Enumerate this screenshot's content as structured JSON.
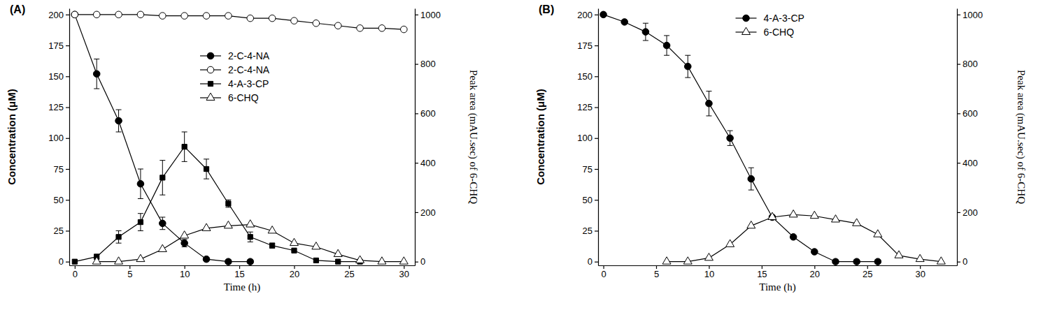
{
  "chart_data": [
    {
      "type": "line",
      "title": "(A)",
      "x_label": "Time (h)",
      "y_label": "Concentration (μM)",
      "y2_label": "Peak area (mAU.sec) of 6-CHQ",
      "xlim": [
        -0.5,
        31
      ],
      "xticks": [
        0,
        5,
        10,
        15,
        20,
        25,
        30
      ],
      "ylim": [
        -3,
        205
      ],
      "yticks": [
        0,
        25,
        50,
        75,
        100,
        125,
        150,
        175,
        200
      ],
      "y2lim": [
        -15,
        1025
      ],
      "y2ticks": [
        0,
        200,
        400,
        600,
        800,
        1000
      ],
      "legend": "upper center",
      "series": [
        {
          "name": "2-C-4-NA",
          "color": "#000000",
          "marker": "filled-circle",
          "line_style": "solid",
          "x": [
            0,
            2,
            4,
            6,
            8,
            10,
            12,
            14,
            16
          ],
          "values": [
            200,
            152,
            114,
            63,
            31,
            15,
            2,
            0,
            0
          ],
          "errors": [
            null,
            12,
            9,
            12,
            5,
            3,
            null,
            null,
            null
          ]
        },
        {
          "name": "2-C-4-NA",
          "color": "#000000",
          "marker": "open-circle",
          "line_style": "solid",
          "x": [
            0,
            2,
            4,
            6,
            8,
            10,
            12,
            14,
            16,
            18,
            20,
            22,
            24,
            26,
            28,
            30
          ],
          "values": [
            200,
            200,
            200,
            200,
            199,
            199,
            199,
            199,
            197,
            197,
            195,
            193,
            191,
            189,
            189,
            188
          ]
        },
        {
          "name": "4-A-3-CP",
          "color": "#000000",
          "marker": "filled-square",
          "line_style": "solid",
          "x": [
            0,
            2,
            4,
            6,
            8,
            10,
            12,
            14,
            16,
            18,
            20,
            22,
            24,
            26
          ],
          "values": [
            0,
            4,
            20,
            32,
            68,
            93,
            75,
            47,
            20,
            13,
            9,
            1,
            0,
            0
          ],
          "errors": [
            null,
            2,
            5,
            7,
            14,
            12,
            8,
            3,
            4,
            2,
            null,
            null,
            null,
            null
          ]
        },
        {
          "name": "6-CHQ",
          "color": "#000000",
          "marker": "open-triangle",
          "line_style": "solid",
          "axis": "y2",
          "x": [
            2,
            4,
            6,
            8,
            10,
            12,
            14,
            16,
            18,
            20,
            22,
            24,
            26,
            28,
            30
          ],
          "values": [
            0,
            0,
            10,
            50,
            105,
            135,
            145,
            150,
            125,
            75,
            60,
            30,
            5,
            0,
            0
          ]
        }
      ]
    },
    {
      "type": "line",
      "title": "(B)",
      "x_label": "Time (h)",
      "y_label": "Concentration (μM)",
      "y2_label": "Peak area (mAU.sec) of 6-CHQ",
      "xlim": [
        -0.5,
        33.5
      ],
      "xticks": [
        0,
        5,
        10,
        15,
        20,
        25,
        30
      ],
      "ylim": [
        -3,
        205
      ],
      "yticks": [
        0,
        25,
        50,
        75,
        100,
        125,
        150,
        175,
        200
      ],
      "y2lim": [
        -15,
        1025
      ],
      "y2ticks": [
        0,
        200,
        400,
        600,
        800,
        1000
      ],
      "legend": "upper center",
      "series": [
        {
          "name": "4-A-3-CP",
          "color": "#000000",
          "marker": "filled-circle",
          "line_style": "solid",
          "x": [
            0,
            2,
            4,
            6,
            8,
            10,
            12,
            14,
            16,
            18,
            20,
            22,
            24,
            26
          ],
          "values": [
            200,
            194,
            186,
            175,
            158,
            128,
            100,
            67,
            36,
            20,
            8,
            0,
            0,
            0
          ],
          "errors": [
            null,
            null,
            7,
            8,
            9,
            10,
            6,
            9,
            null,
            null,
            null,
            null,
            null,
            null
          ]
        },
        {
          "name": "6-CHQ",
          "color": "#000000",
          "marker": "open-triangle",
          "line_style": "solid",
          "axis": "y2",
          "x": [
            6,
            8,
            10,
            12,
            14,
            16,
            18,
            20,
            22,
            24,
            26,
            28,
            30,
            32
          ],
          "values": [
            0,
            0,
            15,
            70,
            145,
            180,
            190,
            185,
            170,
            155,
            110,
            25,
            10,
            0
          ]
        }
      ]
    }
  ]
}
